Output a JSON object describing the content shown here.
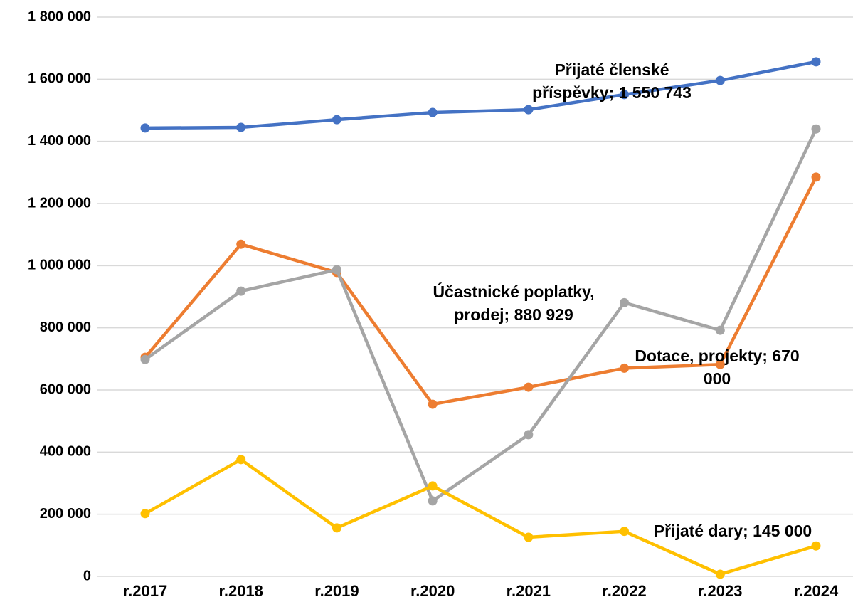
{
  "chart_data": {
    "type": "line",
    "categories": [
      "r.2017",
      "r.2018",
      "r.2019",
      "r.2020",
      "r.2021",
      "r.2022",
      "r.2023",
      "r.2024"
    ],
    "series": [
      {
        "name": "Přijaté členské příspěvky",
        "color": "#4472c4",
        "values": [
          1443000,
          1445000,
          1470000,
          1493000,
          1502000,
          1550743,
          1596000,
          1656000
        ],
        "value_labels": [
          null,
          null,
          null,
          null,
          null,
          "Přijaté členské příspěvky; 1 550 743",
          null,
          null
        ]
      },
      {
        "name": "Dotace, projekty",
        "color": "#ed7d31",
        "values": [
          705000,
          1069000,
          978000,
          554000,
          609000,
          670000,
          682000,
          1285000
        ],
        "value_labels": [
          null,
          null,
          null,
          null,
          null,
          "Dotace, projekty; 670 000",
          null,
          null
        ]
      },
      {
        "name": "Účastnické poplatky, prodej",
        "color": "#a5a5a5",
        "values": [
          698000,
          918000,
          987000,
          243000,
          456000,
          880929,
          792000,
          1440000
        ],
        "value_labels": [
          null,
          null,
          null,
          null,
          null,
          "Účastnické poplatky, prodej; 880 929",
          null,
          null
        ]
      },
      {
        "name": "Přijaté dary",
        "color": "#ffc000",
        "values": [
          202000,
          376000,
          156000,
          291000,
          126000,
          145000,
          7000,
          98000
        ],
        "value_labels": [
          null,
          null,
          null,
          null,
          null,
          "Přijaté dary; 145 000",
          null,
          null
        ]
      }
    ],
    "ylim": [
      0,
      1800000
    ],
    "yticks": [
      0,
      {
        "value": 200000,
        "label": "200 000"
      },
      {
        "value": 400000,
        "label": "400 000"
      },
      {
        "value": 600000,
        "label": "600 000"
      },
      {
        "value": 800000,
        "label": "800 000"
      },
      {
        "value": 1000000,
        "label": "1 000 000"
      },
      {
        "value": 1200000,
        "label": "1 200 000"
      },
      {
        "value": 1400000,
        "label": "1 400 000"
      },
      {
        "value": 1600000,
        "label": "1 600 000"
      },
      {
        "value": 1800000,
        "label": "1 800 000"
      }
    ],
    "grid": true
  }
}
